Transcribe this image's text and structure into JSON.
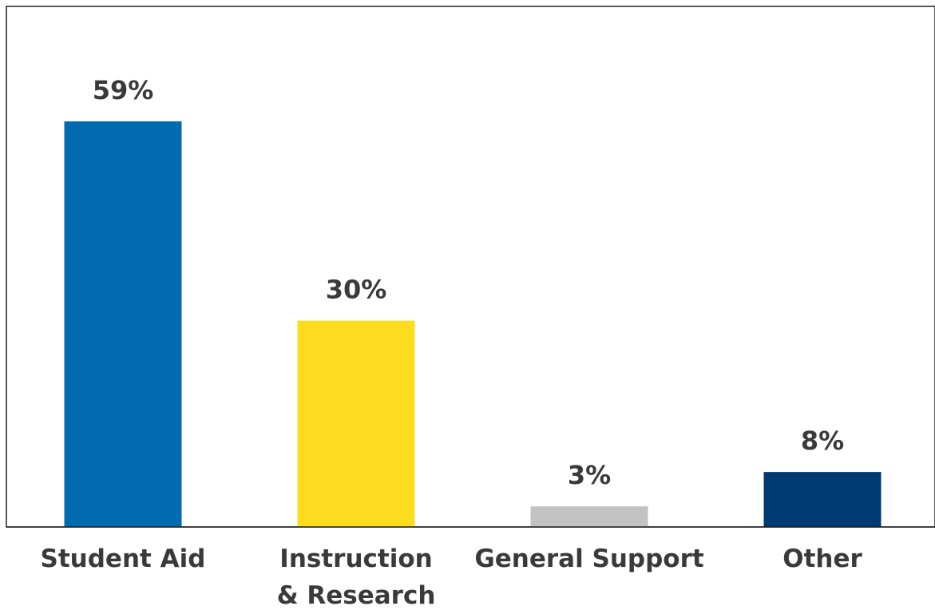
{
  "chart_data": {
    "type": "bar",
    "title": "",
    "xlabel": "",
    "ylabel": "",
    "ylim": [
      0,
      65
    ],
    "categories": [
      [
        "Student Aid"
      ],
      [
        "Instruction",
        "& Research"
      ],
      [
        "General Support"
      ],
      [
        "Other"
      ]
    ],
    "values": [
      59,
      30,
      3,
      8
    ],
    "value_labels": [
      "59%",
      "30%",
      "3%",
      "8%"
    ],
    "colors": [
      "#006BB0",
      "#FDDC1F",
      "#C2C2C2",
      "#003A72"
    ],
    "grid": false,
    "legend": "none"
  }
}
